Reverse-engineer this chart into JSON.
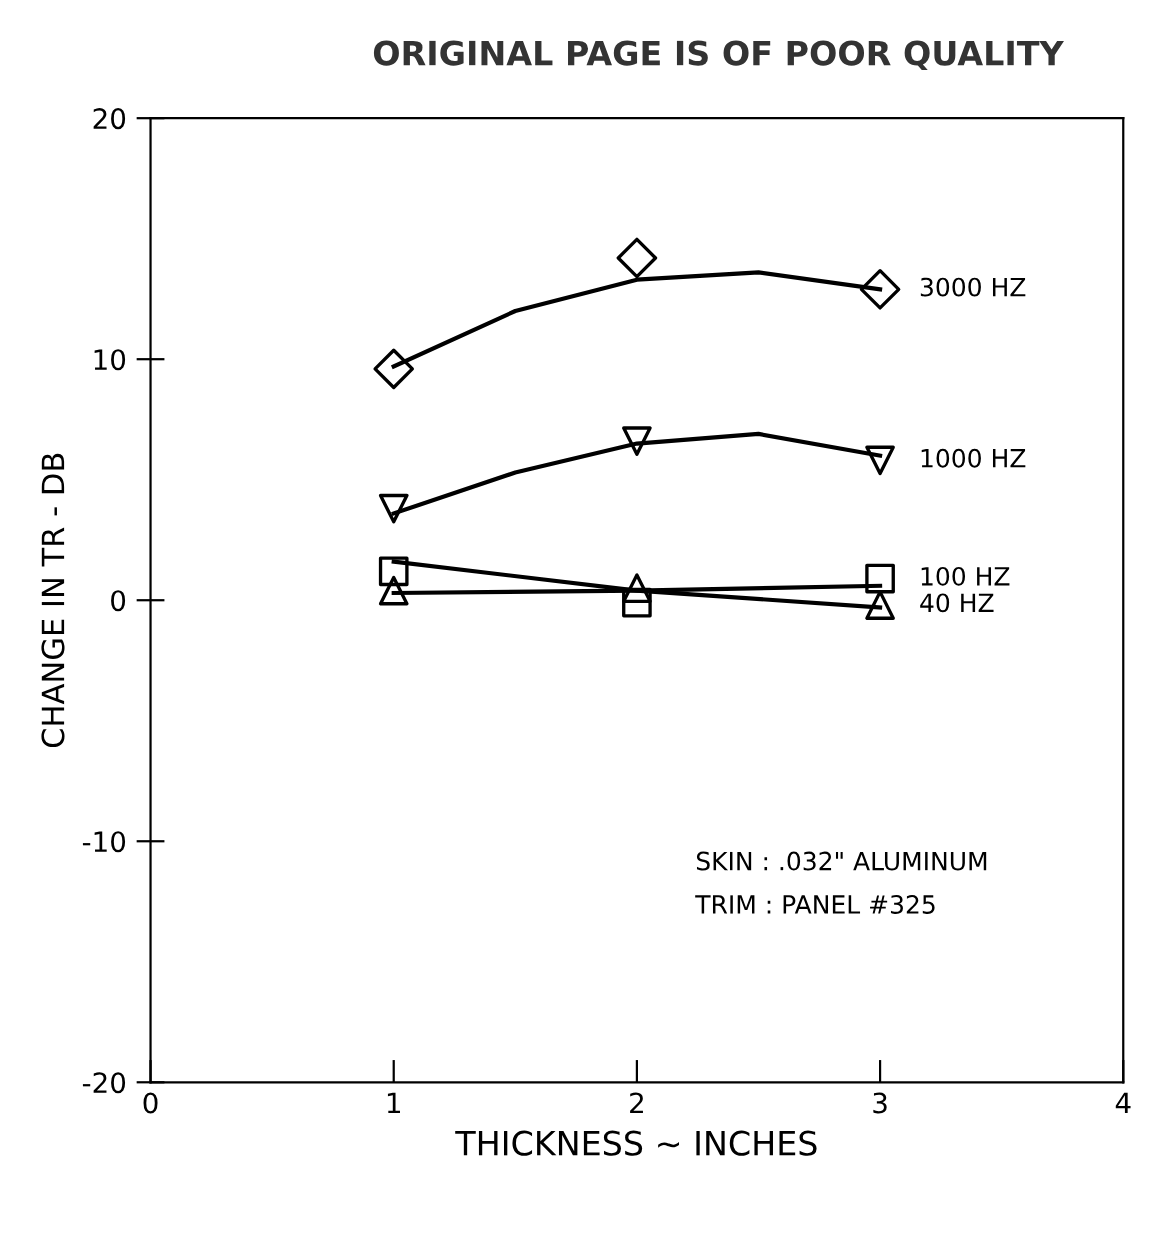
{
  "chart_data": {
    "type": "line",
    "xlabel": "THICKNESS ~ INCHES",
    "ylabel": "CHANGE IN TR - DB",
    "x": [
      1,
      2,
      3
    ],
    "series": [
      {
        "name": "3000 HZ",
        "type": "scatter",
        "marker": "diamond",
        "color": "#000000",
        "values": [
          9.6,
          14.2,
          12.9
        ]
      },
      {
        "name": "1000 HZ",
        "type": "scatter",
        "marker": "triangle_down",
        "color": "#000000",
        "values": [
          3.8,
          6.6,
          5.8
        ]
      },
      {
        "name": "100 HZ",
        "type": "scatter",
        "marker": "square",
        "color": "#000000",
        "values": [
          1.2,
          -0.1,
          0.9
        ]
      },
      {
        "name": "40 HZ",
        "type": "scatter",
        "marker": "triangle",
        "color": "#000000",
        "values": [
          0.4,
          0.5,
          -0.2
        ]
      },
      {
        "color": "#000000",
        "x": [
          1,
          1.5,
          2,
          2.5,
          3
        ],
        "values": [
          9.7,
          12.0,
          13.3,
          13.6,
          12.9
        ]
      },
      {
        "color": "#000000",
        "x": [
          1,
          1.5,
          2,
          2.5,
          3
        ],
        "values": [
          3.6,
          5.3,
          6.5,
          6.9,
          6.0
        ]
      },
      {
        "color": "#000000",
        "x": [
          1,
          2,
          3
        ],
        "values": [
          1.6,
          0.4,
          -0.3
        ]
      },
      {
        "color": "#000000",
        "x": [
          1,
          2,
          3
        ],
        "values": [
          0.3,
          0.4,
          0.6
        ]
      }
    ],
    "xlim": [
      0,
      4
    ],
    "xticks": [
      0,
      1,
      2,
      3,
      4
    ],
    "ylim": [
      -20,
      20
    ],
    "yticks": [
      -20,
      -10,
      0,
      10,
      20
    ],
    "grid": false,
    "legend": false,
    "annotations": [
      "ORIGINAL PAGE IS OF POOR QUALITY",
      "SKIN : .032\" ALUMINUM",
      "TRIM : PANEL #325"
    ]
  }
}
